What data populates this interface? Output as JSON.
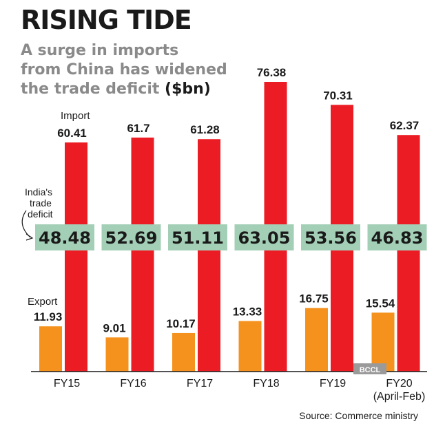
{
  "chart_data": {
    "type": "bar",
    "title": "RISING TIDE",
    "subtitle_main": "A surge in imports from China has widened the trade deficit",
    "subtitle_unit": "($bn)",
    "categories": [
      "FY15",
      "FY16",
      "FY17",
      "FY18",
      "FY19",
      "FY20"
    ],
    "category_notes": [
      "",
      "",
      "",
      "",
      "",
      "(April-Feb)"
    ],
    "series": [
      {
        "name": "Export",
        "values": [
          11.93,
          9.01,
          10.17,
          13.33,
          16.75,
          15.54
        ],
        "color": "#f5921e"
      },
      {
        "name": "Import",
        "values": [
          60.41,
          61.7,
          61.28,
          76.38,
          70.31,
          62.37
        ],
        "color": "#ec1c24"
      }
    ],
    "deficit": {
      "label": "India's trade deficit",
      "values": [
        48.48,
        52.69,
        51.11,
        63.05,
        53.56,
        46.83
      ],
      "box_color": "#a3cfb6"
    },
    "label_value_strings": {
      "import": [
        "60.41",
        "61.7",
        "61.28",
        "76.38",
        "70.31",
        "62.37"
      ],
      "export": [
        "11.93",
        "9.01",
        "10.17",
        "13.33",
        "16.75",
        "15.54"
      ],
      "deficit": [
        "48.48",
        "52.69",
        "51.11",
        "63.05",
        "53.56",
        "46.83"
      ]
    },
    "source": "Source: Commerce ministry",
    "watermark": "BCCL",
    "grid": false,
    "legend": "inline-annotations"
  }
}
